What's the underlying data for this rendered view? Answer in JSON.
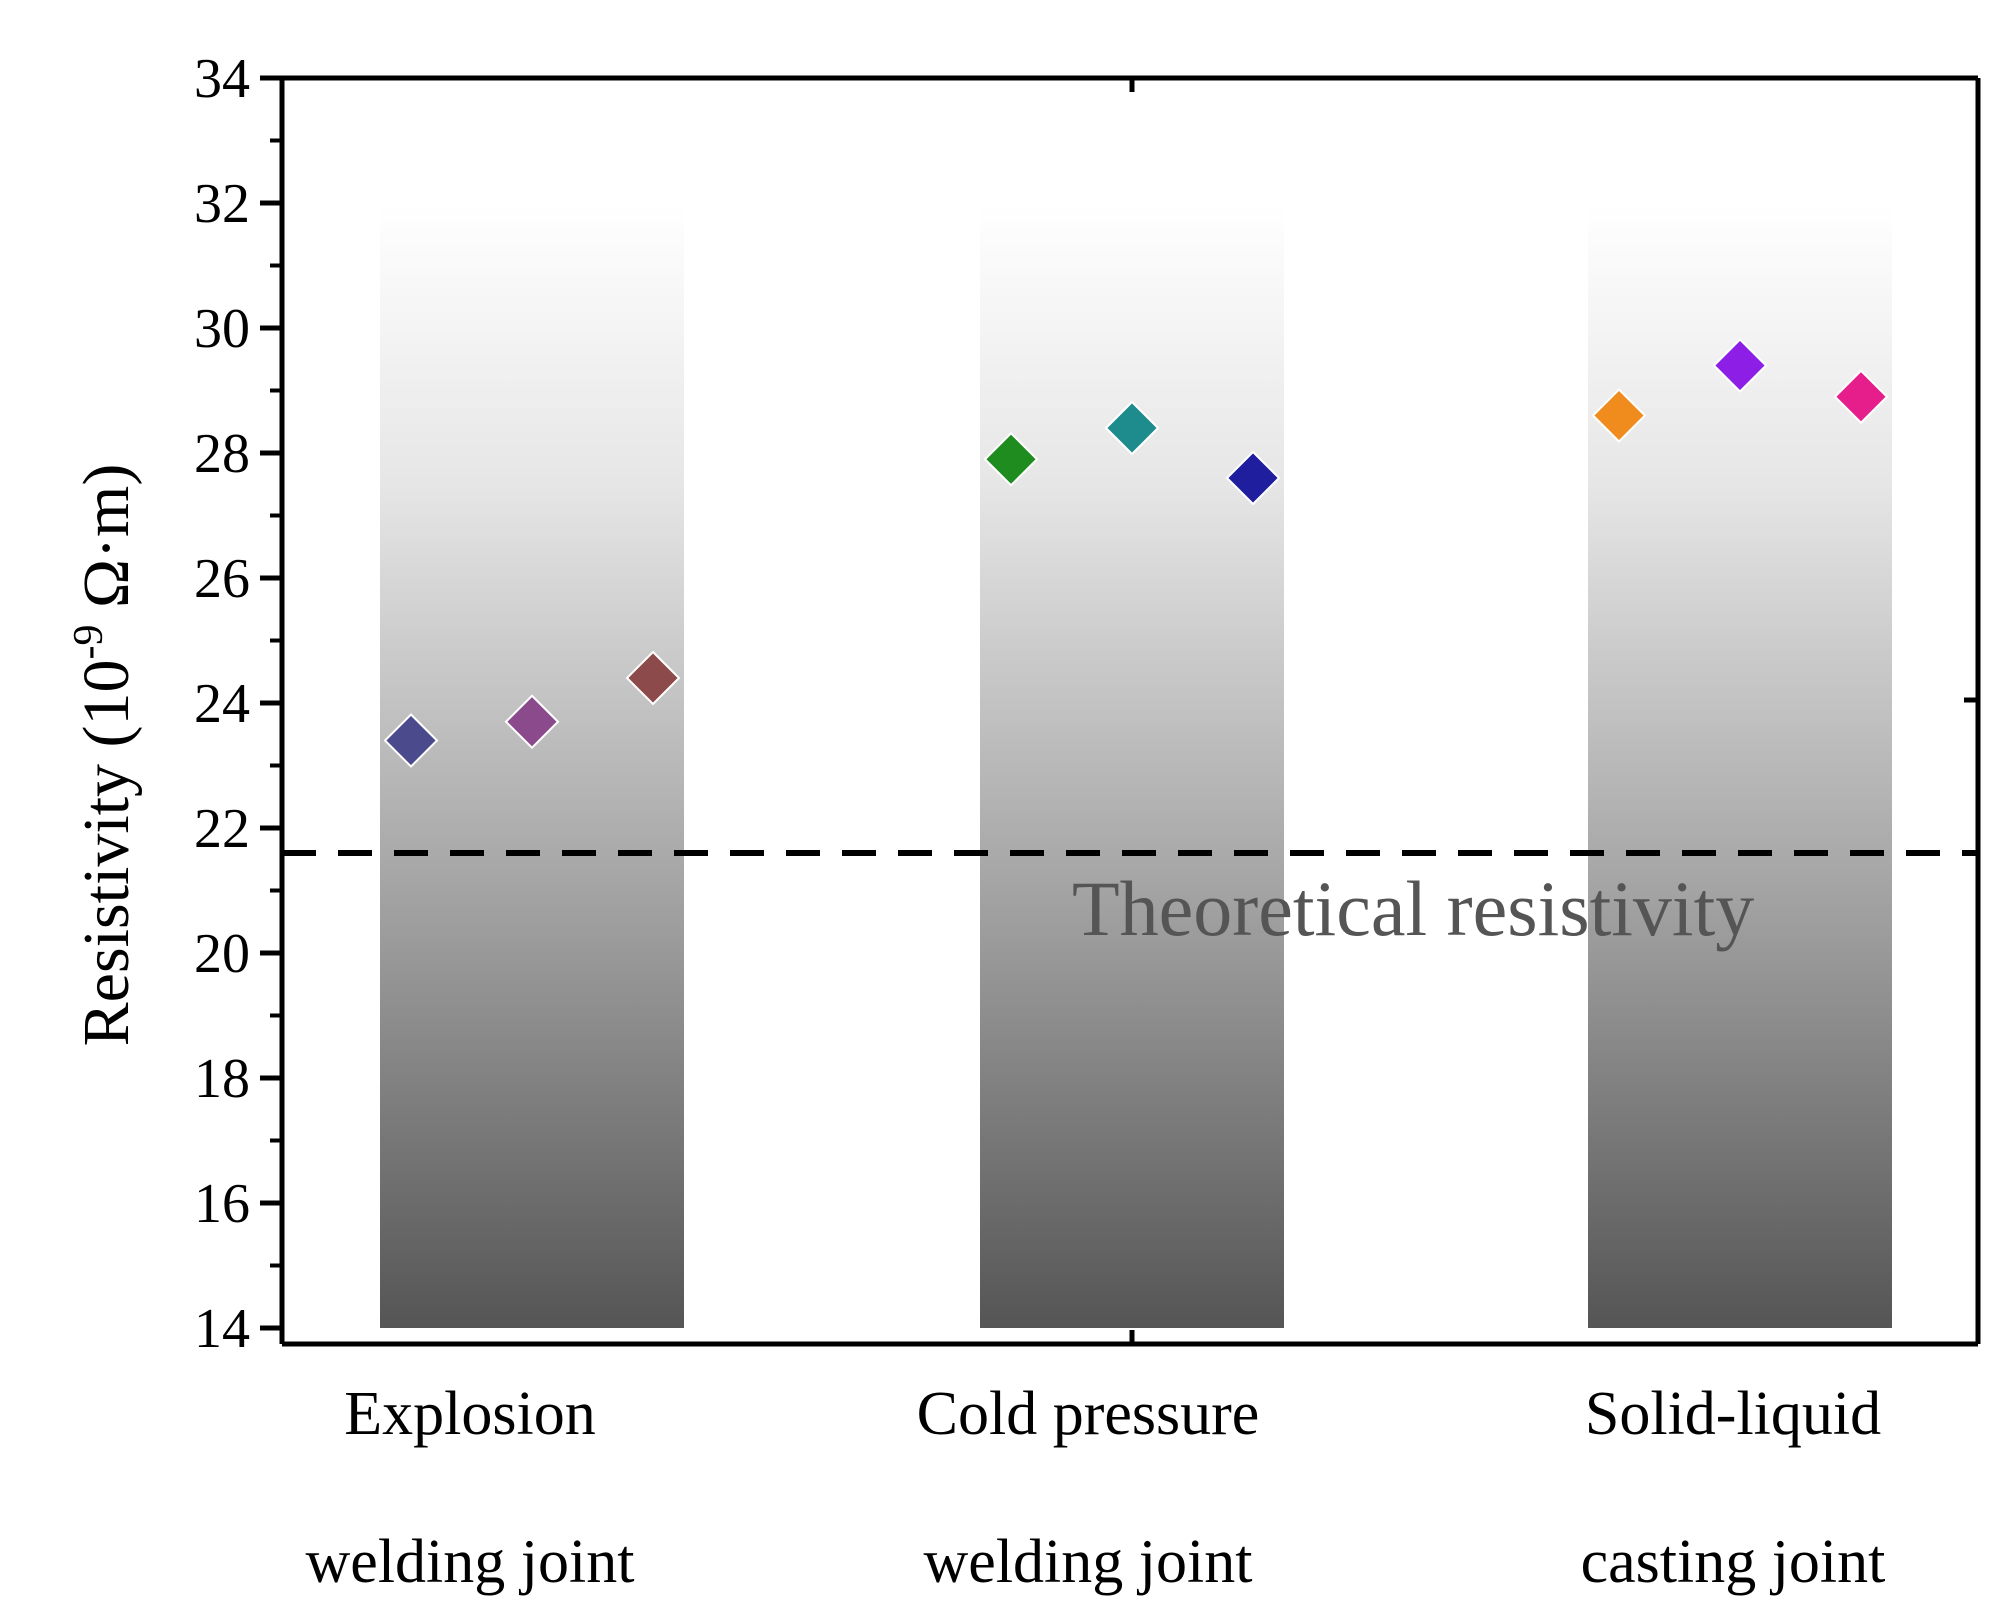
{
  "chart_data": {
    "type": "scatter",
    "categories": [
      [
        "Explosion",
        "welding joint"
      ],
      [
        "Cold pressure",
        "welding joint"
      ],
      [
        "Solid-liquid",
        "casting joint"
      ]
    ],
    "ylabel": "Resistivity (10",
    "ylabel_exponent": "-9",
    "ylabel_unit": " Ω·m)",
    "ylim": [
      14,
      34
    ],
    "yticks": [
      "14",
      "16",
      "18",
      "20",
      "22",
      "24",
      "26",
      "28",
      "30",
      "32",
      "34"
    ],
    "background_bars": [
      {
        "category": 0,
        "from": 14,
        "to": 32
      },
      {
        "category": 1,
        "from": 14,
        "to": 32
      },
      {
        "category": 2,
        "from": 14,
        "to": 32
      }
    ],
    "points": [
      {
        "category": 0,
        "offset": -1,
        "value": 23.4,
        "color": "#4a4a8c"
      },
      {
        "category": 0,
        "offset": 0,
        "value": 23.7,
        "color": "#8a4a8c"
      },
      {
        "category": 0,
        "offset": 1,
        "value": 24.4,
        "color": "#8c4a4a"
      },
      {
        "category": 1,
        "offset": -1,
        "value": 27.9,
        "color": "#1e8c1e"
      },
      {
        "category": 1,
        "offset": 0,
        "value": 28.4,
        "color": "#1e8c8c"
      },
      {
        "category": 1,
        "offset": 1,
        "value": 27.6,
        "color": "#1e1e9e"
      },
      {
        "category": 2,
        "offset": -1,
        "value": 28.6,
        "color": "#f08c1e"
      },
      {
        "category": 2,
        "offset": 0,
        "value": 29.4,
        "color": "#8c1ee6"
      },
      {
        "category": 2,
        "offset": 1,
        "value": 28.9,
        "color": "#e61e8c"
      }
    ],
    "reference_line": {
      "value": 21.6,
      "label": "Theoretical resistivity",
      "style": "dashed",
      "color": "#000000"
    },
    "grid": false,
    "legend": "none"
  }
}
